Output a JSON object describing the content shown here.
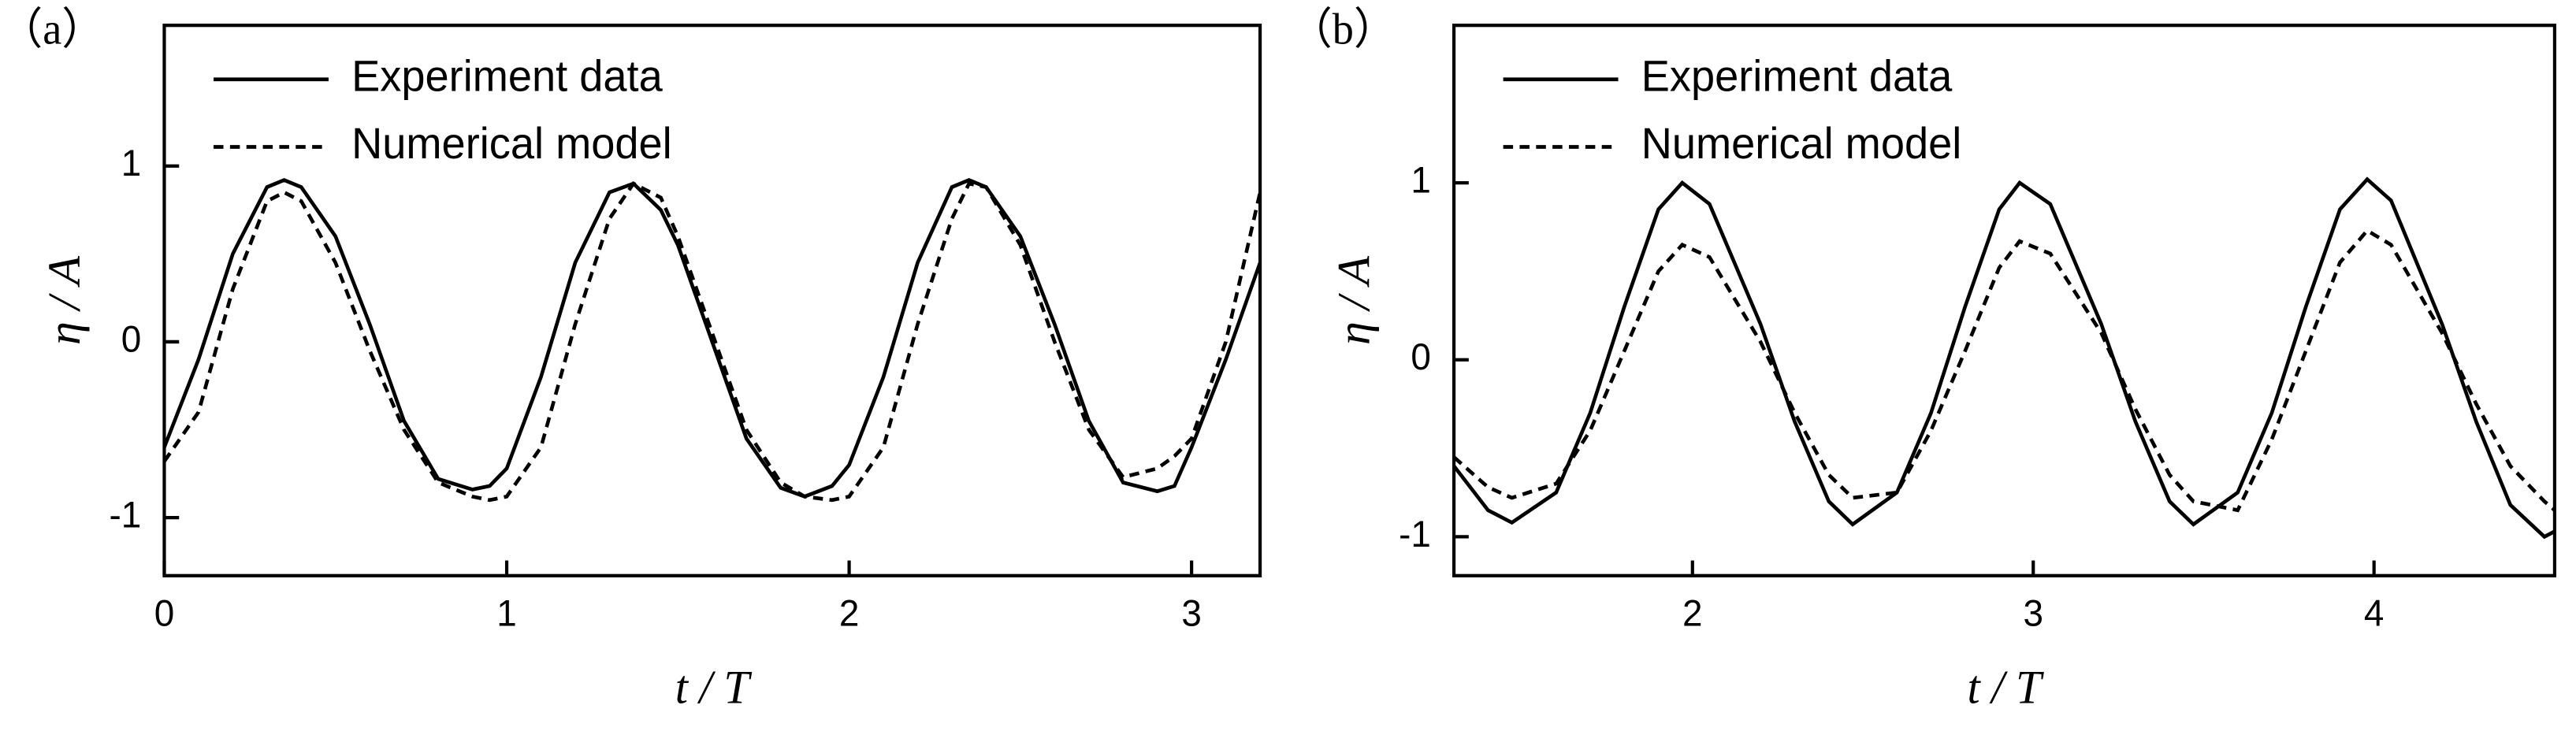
{
  "chart_data": [
    {
      "type": "line",
      "panel_label": "（a）",
      "xlabel": "t / T",
      "ylabel": "η / A",
      "xlim": [
        0,
        3.2
      ],
      "ylim": [
        -1.33,
        1.8
      ],
      "xticks": [
        0,
        1,
        2,
        3
      ],
      "yticks": [
        -1,
        0,
        1
      ],
      "legend": "upper left",
      "series": [
        {
          "name": "Experiment data",
          "color": "#000000",
          "linestyle": "solid",
          "x": [
            0,
            0.1,
            0.2,
            0.3,
            0.35,
            0.4,
            0.5,
            0.6,
            0.7,
            0.8,
            0.9,
            0.95,
            1.0,
            1.1,
            1.2,
            1.3,
            1.37,
            1.45,
            1.5,
            1.6,
            1.7,
            1.8,
            1.87,
            1.95,
            2.0,
            2.1,
            2.2,
            2.3,
            2.35,
            2.4,
            2.5,
            2.6,
            2.7,
            2.8,
            2.9,
            2.95,
            3.0,
            3.1,
            3.2
          ],
          "values": [
            -0.6,
            -0.1,
            0.5,
            0.88,
            0.92,
            0.88,
            0.6,
            0.1,
            -0.45,
            -0.78,
            -0.84,
            -0.82,
            -0.72,
            -0.2,
            0.45,
            0.85,
            0.9,
            0.75,
            0.55,
            0.0,
            -0.55,
            -0.83,
            -0.88,
            -0.82,
            -0.7,
            -0.2,
            0.45,
            0.88,
            0.92,
            0.88,
            0.6,
            0.1,
            -0.45,
            -0.8,
            -0.85,
            -0.82,
            -0.6,
            -0.1,
            0.45
          ]
        },
        {
          "name": "Numerical model",
          "color": "#000000",
          "linestyle": "dashed",
          "x": [
            0,
            0.1,
            0.2,
            0.3,
            0.35,
            0.4,
            0.5,
            0.6,
            0.7,
            0.8,
            0.9,
            0.95,
            1.0,
            1.1,
            1.2,
            1.3,
            1.37,
            1.45,
            1.5,
            1.6,
            1.7,
            1.8,
            1.87,
            1.95,
            2.0,
            2.1,
            2.2,
            2.3,
            2.35,
            2.4,
            2.5,
            2.6,
            2.7,
            2.8,
            2.9,
            2.95,
            3.0,
            3.1,
            3.2
          ],
          "values": [
            -0.68,
            -0.4,
            0.3,
            0.8,
            0.85,
            0.8,
            0.45,
            -0.05,
            -0.5,
            -0.8,
            -0.88,
            -0.9,
            -0.88,
            -0.6,
            0.1,
            0.7,
            0.9,
            0.82,
            0.6,
            0.05,
            -0.5,
            -0.8,
            -0.88,
            -0.9,
            -0.88,
            -0.6,
            0.1,
            0.7,
            0.9,
            0.88,
            0.55,
            0.0,
            -0.5,
            -0.77,
            -0.72,
            -0.65,
            -0.55,
            0.0,
            0.85
          ]
        }
      ]
    },
    {
      "type": "line",
      "panel_label": "（b）",
      "xlabel": "t / T",
      "ylabel": "η / A",
      "xlim": [
        1.3,
        4.53
      ],
      "ylim": [
        -1.22,
        1.89
      ],
      "xticks": [
        2,
        3,
        4
      ],
      "yticks": [
        -1,
        0,
        1
      ],
      "legend": "upper left",
      "series": [
        {
          "name": "Experiment data",
          "color": "#000000",
          "linestyle": "solid",
          "x": [
            1.3,
            1.4,
            1.47,
            1.6,
            1.7,
            1.8,
            1.9,
            1.97,
            2.05,
            2.2,
            2.3,
            2.4,
            2.47,
            2.6,
            2.7,
            2.8,
            2.9,
            2.96,
            3.05,
            3.2,
            3.3,
            3.4,
            3.47,
            3.6,
            3.7,
            3.8,
            3.9,
            3.98,
            4.05,
            4.2,
            4.3,
            4.4,
            4.5,
            4.53
          ],
          "values": [
            -0.6,
            -0.85,
            -0.92,
            -0.75,
            -0.3,
            0.3,
            0.85,
            1.0,
            0.88,
            0.2,
            -0.35,
            -0.8,
            -0.93,
            -0.75,
            -0.3,
            0.3,
            0.85,
            1.0,
            0.88,
            0.2,
            -0.35,
            -0.8,
            -0.93,
            -0.75,
            -0.3,
            0.3,
            0.85,
            1.02,
            0.9,
            0.2,
            -0.35,
            -0.82,
            -1.0,
            -0.97
          ]
        },
        {
          "name": "Numerical model",
          "color": "#000000",
          "linestyle": "dashed",
          "x": [
            1.3,
            1.4,
            1.47,
            1.6,
            1.7,
            1.8,
            1.9,
            1.97,
            2.05,
            2.2,
            2.3,
            2.4,
            2.47,
            2.6,
            2.7,
            2.8,
            2.9,
            2.96,
            3.05,
            3.2,
            3.3,
            3.4,
            3.47,
            3.6,
            3.7,
            3.8,
            3.9,
            3.98,
            4.05,
            4.2,
            4.3,
            4.4,
            4.5,
            4.53
          ],
          "values": [
            -0.55,
            -0.72,
            -0.78,
            -0.7,
            -0.4,
            0.05,
            0.5,
            0.65,
            0.58,
            0.1,
            -0.3,
            -0.65,
            -0.78,
            -0.75,
            -0.4,
            0.05,
            0.52,
            0.67,
            0.6,
            0.15,
            -0.28,
            -0.65,
            -0.8,
            -0.85,
            -0.45,
            0.05,
            0.55,
            0.73,
            0.65,
            0.15,
            -0.25,
            -0.6,
            -0.8,
            -0.85
          ]
        }
      ]
    }
  ]
}
